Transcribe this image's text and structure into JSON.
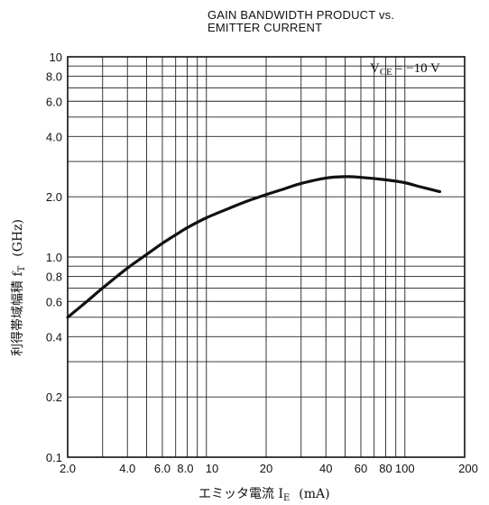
{
  "chart_data": {
    "type": "line",
    "title_line1": "GAIN BANDWIDTH PRODUCT vs.",
    "title_line2": "EMITTER CURRENT",
    "xlabel": "エミッタ電流  I",
    "xlabel_sub": "E",
    "xlabel_unit": "(mA)",
    "ylabel": "利得帯域幅積  f",
    "ylabel_sub": "T",
    "ylabel_unit": "(GHz)",
    "annotation": "V",
    "annotation_sub": "CE",
    "annotation_value": "= −10  V",
    "x_scale": "log",
    "y_scale": "log",
    "xlim": [
      2,
      200
    ],
    "ylim": [
      0.1,
      10
    ],
    "x_ticks": [
      {
        "value": 2,
        "label": "2.0"
      },
      {
        "value": 4,
        "label": "4.0"
      },
      {
        "value": 6,
        "label": "6.0"
      },
      {
        "value": 8,
        "label": "8.0"
      },
      {
        "value": 10,
        "label": "10"
      },
      {
        "value": 20,
        "label": "20"
      },
      {
        "value": 40,
        "label": "40"
      },
      {
        "value": 60,
        "label": "60"
      },
      {
        "value": 80,
        "label": "80"
      },
      {
        "value": 100,
        "label": "100"
      },
      {
        "value": 200,
        "label": "200"
      }
    ],
    "y_ticks": [
      {
        "value": 0.1,
        "label": "0.1"
      },
      {
        "value": 0.2,
        "label": "0.2"
      },
      {
        "value": 0.4,
        "label": "0.4"
      },
      {
        "value": 0.6,
        "label": "0.6"
      },
      {
        "value": 0.8,
        "label": "0.8"
      },
      {
        "value": 1.0,
        "label": "1.0"
      },
      {
        "value": 2.0,
        "label": "2.0"
      },
      {
        "value": 4.0,
        "label": "4.0"
      },
      {
        "value": 6.0,
        "label": "6.0"
      },
      {
        "value": 8.0,
        "label": "8.0"
      },
      {
        "value": 10,
        "label": "10"
      }
    ],
    "x_grid": [
      2,
      3,
      4,
      5,
      6,
      7,
      8,
      9,
      10,
      20,
      30,
      40,
      50,
      60,
      70,
      80,
      90,
      100,
      200
    ],
    "y_grid": [
      0.1,
      0.2,
      0.3,
      0.4,
      0.5,
      0.6,
      0.7,
      0.8,
      0.9,
      1,
      2,
      3,
      4,
      5,
      6,
      7,
      8,
      9,
      10
    ],
    "grid": true,
    "series": [
      {
        "x": [
          2,
          2.5,
          3,
          4,
          5,
          6,
          7,
          8,
          10,
          13,
          16,
          20,
          25,
          30,
          40,
          50,
          60,
          80,
          100,
          120,
          150
        ],
        "y": [
          0.5,
          0.6,
          0.7,
          0.88,
          1.03,
          1.17,
          1.29,
          1.4,
          1.57,
          1.75,
          1.9,
          2.05,
          2.2,
          2.33,
          2.48,
          2.52,
          2.5,
          2.43,
          2.35,
          2.24,
          2.12
        ]
      }
    ],
    "colors": {
      "line": "#111111",
      "grid": "#222222",
      "frame": "#111111"
    }
  }
}
